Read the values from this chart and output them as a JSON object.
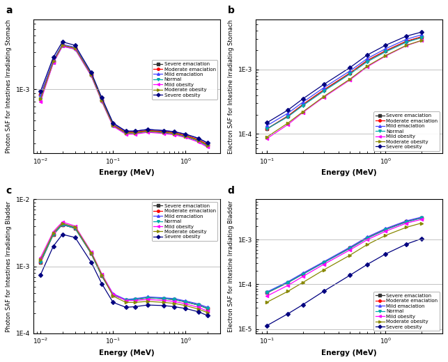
{
  "colors": {
    "severe_emaciation": "#333333",
    "moderate_emaciation": "#ff0000",
    "mild_emaciation": "#4444ff",
    "normal": "#00aaaa",
    "mild_obesity": "#ff00ff",
    "moderate_obesity": "#888800",
    "severe_obesity": "#000080"
  },
  "markers": {
    "severe_emaciation": "s",
    "moderate_emaciation": "o",
    "mild_emaciation": "^",
    "normal": "v",
    "mild_obesity": "<",
    "moderate_obesity": ">",
    "severe_obesity": "D"
  },
  "legend_labels": [
    "Severe emaciation",
    "Moderate emaciation",
    "Mild emaciation",
    "Normal",
    "Mild obesity",
    "Moderate obesity",
    "Severe obesity"
  ],
  "panel_a": {
    "title": "a",
    "ylabel": "Photon SAF for Intestines Irradiating Stomach",
    "xlabel": "Energy (MeV)",
    "xlim": [
      0.008,
      3.0
    ],
    "ylim": [
      0.00015,
      0.008
    ],
    "yticks": [
      0.001
    ],
    "energy": [
      0.01,
      0.015,
      0.02,
      0.03,
      0.05,
      0.07,
      0.1,
      0.15,
      0.2,
      0.3,
      0.5,
      0.7,
      1.0,
      1.5,
      2.0
    ],
    "severe_emaciation": [
      0.00085,
      0.0023,
      0.0037,
      0.0034,
      0.00155,
      0.00072,
      0.00035,
      0.00028,
      0.00028,
      0.000295,
      0.000285,
      0.000275,
      0.000255,
      0.000225,
      0.000195
    ],
    "moderate_emaciation": [
      0.00085,
      0.0023,
      0.0037,
      0.0034,
      0.00155,
      0.00072,
      0.00035,
      0.00028,
      0.00028,
      0.000295,
      0.000285,
      0.000275,
      0.000255,
      0.000225,
      0.000195
    ],
    "mild_emaciation": [
      0.00085,
      0.0024,
      0.0038,
      0.0035,
      0.0016,
      0.00075,
      0.00036,
      0.00029,
      0.00029,
      0.000305,
      0.000295,
      0.000285,
      0.000265,
      0.000235,
      0.000205
    ],
    "normal": [
      0.00075,
      0.0022,
      0.0036,
      0.0033,
      0.0015,
      0.0007,
      0.00034,
      0.00027,
      0.00027,
      0.000285,
      0.000275,
      0.000265,
      0.000245,
      0.000215,
      0.000185
    ],
    "mild_obesity": [
      0.0007,
      0.0022,
      0.0036,
      0.0033,
      0.0015,
      0.0007,
      0.000335,
      0.000265,
      0.000265,
      0.00028,
      0.00027,
      0.00026,
      0.00024,
      0.00021,
      0.00018
    ],
    "moderate_obesity": [
      0.00075,
      0.0023,
      0.0037,
      0.0034,
      0.00155,
      0.00072,
      0.000345,
      0.000275,
      0.000275,
      0.00029,
      0.00028,
      0.00027,
      0.00025,
      0.00022,
      0.00019
    ],
    "severe_obesity": [
      0.00095,
      0.0026,
      0.0041,
      0.0037,
      0.00165,
      0.00078,
      0.00037,
      0.00029,
      0.00029,
      0.000305,
      0.000295,
      0.000285,
      0.000265,
      0.000235,
      0.000205
    ]
  },
  "panel_b": {
    "title": "b",
    "ylabel": "Electron SAF for Intestine Irradiating Stomach",
    "xlabel": "Energy (MeV)",
    "xlim": [
      0.08,
      3.0
    ],
    "ylim": [
      5e-05,
      0.006
    ],
    "yticks": [
      0.0001,
      0.001
    ],
    "energy": [
      0.1,
      0.15,
      0.2,
      0.3,
      0.5,
      0.7,
      1.0,
      1.5,
      2.0
    ],
    "severe_emaciation": [
      0.00012,
      0.00019,
      0.000285,
      0.00048,
      0.00088,
      0.00138,
      0.00195,
      0.00275,
      0.0032
    ],
    "moderate_emaciation": [
      0.00012,
      0.00019,
      0.000285,
      0.00048,
      0.00088,
      0.00138,
      0.00195,
      0.00275,
      0.0032
    ],
    "mild_emaciation": [
      0.000135,
      0.00021,
      0.00031,
      0.00052,
      0.00095,
      0.00148,
      0.0021,
      0.00295,
      0.00345
    ],
    "normal": [
      0.00012,
      0.000185,
      0.000275,
      0.00046,
      0.00085,
      0.00132,
      0.00188,
      0.00265,
      0.0031
    ],
    "mild_obesity": [
      8.5e-05,
      0.00014,
      0.000215,
      0.00037,
      0.00069,
      0.0011,
      0.00162,
      0.00235,
      0.0028
    ],
    "moderate_obesity": [
      9e-05,
      0.000148,
      0.00022,
      0.00038,
      0.00071,
      0.00113,
      0.00165,
      0.00238,
      0.00282
    ],
    "severe_obesity": [
      0.00015,
      0.000235,
      0.00035,
      0.000585,
      0.00107,
      0.00168,
      0.00238,
      0.0033,
      0.0038
    ]
  },
  "panel_c": {
    "title": "c",
    "ylabel": "Photon SAF for Intestines Irradiating Bladder",
    "xlabel": "Energy (MeV)",
    "xlim": [
      0.008,
      3.0
    ],
    "ylim": [
      0.0001,
      0.01
    ],
    "yticks": [
      0.001
    ],
    "energy": [
      0.01,
      0.015,
      0.02,
      0.03,
      0.05,
      0.07,
      0.1,
      0.15,
      0.2,
      0.3,
      0.5,
      0.7,
      1.0,
      1.5,
      2.0
    ],
    "severe_emaciation": [
      0.00115,
      0.003,
      0.0042,
      0.0037,
      0.00155,
      0.00072,
      0.000375,
      0.000315,
      0.00032,
      0.00034,
      0.00033,
      0.00032,
      0.000295,
      0.000265,
      0.000235
    ],
    "moderate_emaciation": [
      0.00115,
      0.003,
      0.0042,
      0.0037,
      0.00155,
      0.00072,
      0.000375,
      0.000315,
      0.00032,
      0.00034,
      0.00033,
      0.00032,
      0.000295,
      0.000265,
      0.000235
    ],
    "mild_emaciation": [
      0.0012,
      0.0031,
      0.0043,
      0.0038,
      0.0016,
      0.00075,
      0.00039,
      0.00032,
      0.00033,
      0.00035,
      0.00034,
      0.00033,
      0.000305,
      0.000275,
      0.000245
    ],
    "normal": [
      0.00115,
      0.003,
      0.0042,
      0.0037,
      0.00155,
      0.00072,
      0.000375,
      0.000315,
      0.00032,
      0.00034,
      0.00033,
      0.00032,
      0.000295,
      0.000265,
      0.000235
    ],
    "mild_obesity": [
      0.00135,
      0.0033,
      0.0046,
      0.004,
      0.00165,
      0.00077,
      0.000385,
      0.00031,
      0.00031,
      0.00032,
      0.00031,
      0.0003,
      0.000275,
      0.000245,
      0.000215
    ],
    "moderate_obesity": [
      0.00125,
      0.00315,
      0.0044,
      0.00385,
      0.0016,
      0.00075,
      0.00036,
      0.00029,
      0.00029,
      0.0003,
      0.00029,
      0.00028,
      0.00026,
      0.00023,
      0.000205
    ],
    "severe_obesity": [
      0.00075,
      0.002,
      0.003,
      0.0027,
      0.00115,
      0.00055,
      0.00029,
      0.000245,
      0.00025,
      0.000265,
      0.00026,
      0.00025,
      0.000235,
      0.00021,
      0.000185
    ]
  },
  "panel_d": {
    "title": "d",
    "ylabel": "Electron SAF for Intestine Irradiating Bladder",
    "xlabel": "Energy (MeV)",
    "xlim": [
      0.08,
      3.0
    ],
    "ylim": [
      8e-06,
      0.008
    ],
    "yticks": [
      1e-05,
      0.0001,
      0.001
    ],
    "energy": [
      0.1,
      0.15,
      0.2,
      0.3,
      0.5,
      0.7,
      1.0,
      1.5,
      2.0
    ],
    "severe_emaciation": [
      6.5e-05,
      0.00011,
      0.00017,
      0.00031,
      0.00065,
      0.0011,
      0.0017,
      0.00255,
      0.0031
    ],
    "moderate_emaciation": [
      6.5e-05,
      0.00011,
      0.00017,
      0.00031,
      0.00065,
      0.0011,
      0.0017,
      0.00255,
      0.0031
    ],
    "mild_emaciation": [
      6.8e-05,
      0.000115,
      0.000178,
      0.00032,
      0.00068,
      0.00115,
      0.00178,
      0.00265,
      0.0032
    ],
    "normal": [
      6.5e-05,
      0.00011,
      0.000168,
      0.000305,
      0.00064,
      0.00108,
      0.00168,
      0.0025,
      0.00305
    ],
    "mild_obesity": [
      5.5e-05,
      9.5e-05,
      0.00015,
      0.00028,
      0.00059,
      0.001,
      0.00155,
      0.00235,
      0.00285
    ],
    "moderate_obesity": [
      4e-05,
      7e-05,
      0.00011,
      0.00021,
      0.00045,
      0.00078,
      0.00125,
      0.0019,
      0.00235
    ],
    "severe_obesity": [
      1.2e-05,
      2.2e-05,
      3.5e-05,
      7e-05,
      0.00016,
      0.00028,
      0.00048,
      0.0008,
      0.00105
    ]
  }
}
